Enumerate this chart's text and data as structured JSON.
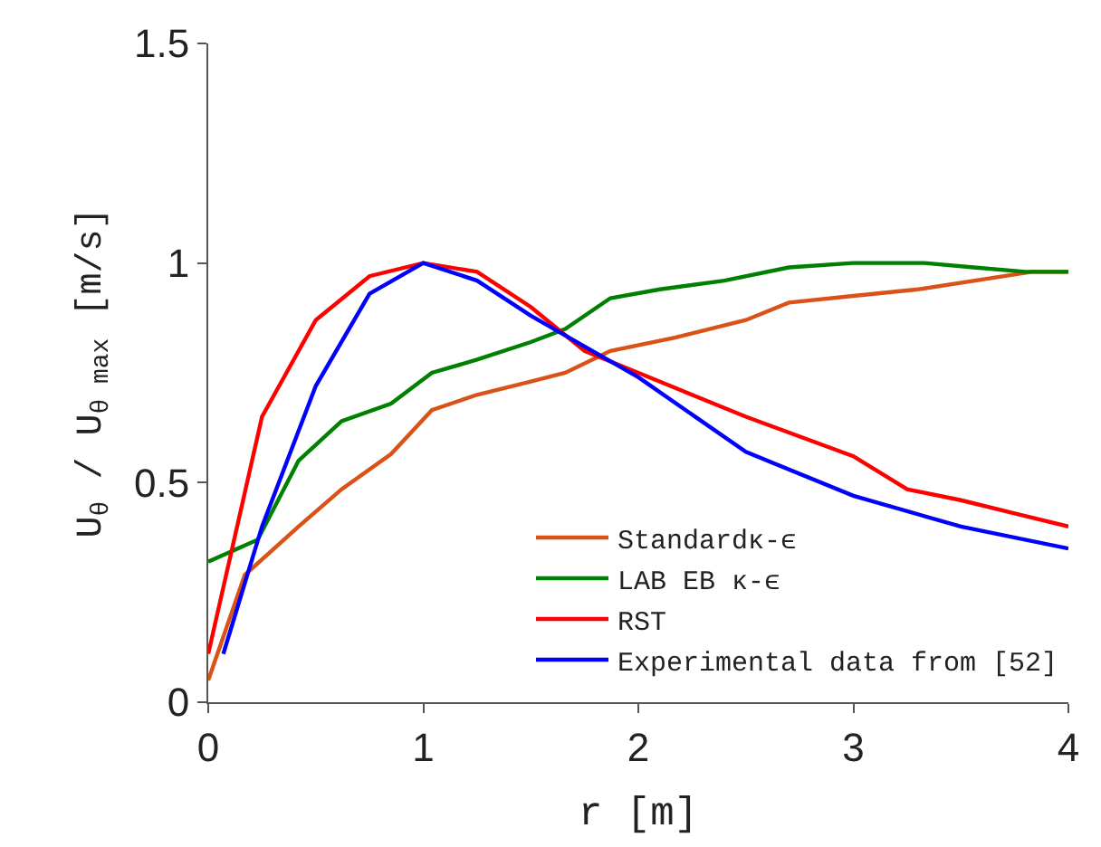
{
  "chart_data": {
    "type": "line",
    "xlabel": "r [m]",
    "ylabel": "U$_{θ}$ / U$_{θ max}$ [m/s]",
    "xlim": [
      0,
      4
    ],
    "ylim": [
      0,
      1.5
    ],
    "xticks": [
      0,
      1,
      2,
      3,
      4
    ],
    "yticks": [
      0,
      0.5,
      1,
      1.5
    ],
    "legend": "bottom right",
    "marker": "none",
    "line_style": "solid",
    "series": [
      {
        "name": "Standardκ-ϵ",
        "color": "#d95319",
        "x": [
          0.0,
          0.17,
          0.42,
          0.62,
          0.85,
          1.04,
          1.25,
          1.5,
          1.66,
          1.87,
          2.17,
          2.5,
          2.7,
          3.0,
          3.3,
          3.83,
          4.0
        ],
        "values": [
          0.05,
          0.29,
          0.4,
          0.485,
          0.565,
          0.665,
          0.7,
          0.73,
          0.75,
          0.8,
          0.83,
          0.87,
          0.91,
          0.925,
          0.94,
          0.98,
          0.98
        ]
      },
      {
        "name": "LAB EB κ-ϵ",
        "color": "#008000",
        "x": [
          0.0,
          0.23,
          0.42,
          0.62,
          0.85,
          1.04,
          1.25,
          1.5,
          1.66,
          1.87,
          2.1,
          2.4,
          2.7,
          3.0,
          3.33,
          3.56,
          3.8,
          4.0
        ],
        "values": [
          0.32,
          0.37,
          0.55,
          0.64,
          0.68,
          0.75,
          0.78,
          0.82,
          0.85,
          0.92,
          0.94,
          0.96,
          0.99,
          1.0,
          1.0,
          0.99,
          0.98,
          0.98
        ]
      },
      {
        "name": "RST",
        "color": "#ff0000",
        "x": [
          0.0,
          0.25,
          0.5,
          0.75,
          1.0,
          1.25,
          1.5,
          1.75,
          2.0,
          2.5,
          3.0,
          3.25,
          3.5,
          3.75,
          4.0
        ],
        "values": [
          0.11,
          0.65,
          0.87,
          0.97,
          1.0,
          0.98,
          0.9,
          0.8,
          0.75,
          0.65,
          0.56,
          0.485,
          0.46,
          0.43,
          0.4
        ]
      },
      {
        "name": "Experimental data from [52]",
        "color": "#0000ff",
        "x": [
          0.07,
          0.25,
          0.5,
          0.75,
          1.0,
          1.25,
          1.5,
          1.75,
          2.0,
          2.5,
          3.0,
          3.5,
          4.0
        ],
        "values": [
          0.11,
          0.4,
          0.72,
          0.93,
          1.0,
          0.96,
          0.88,
          0.81,
          0.74,
          0.57,
          0.47,
          0.4,
          0.35
        ]
      }
    ]
  }
}
